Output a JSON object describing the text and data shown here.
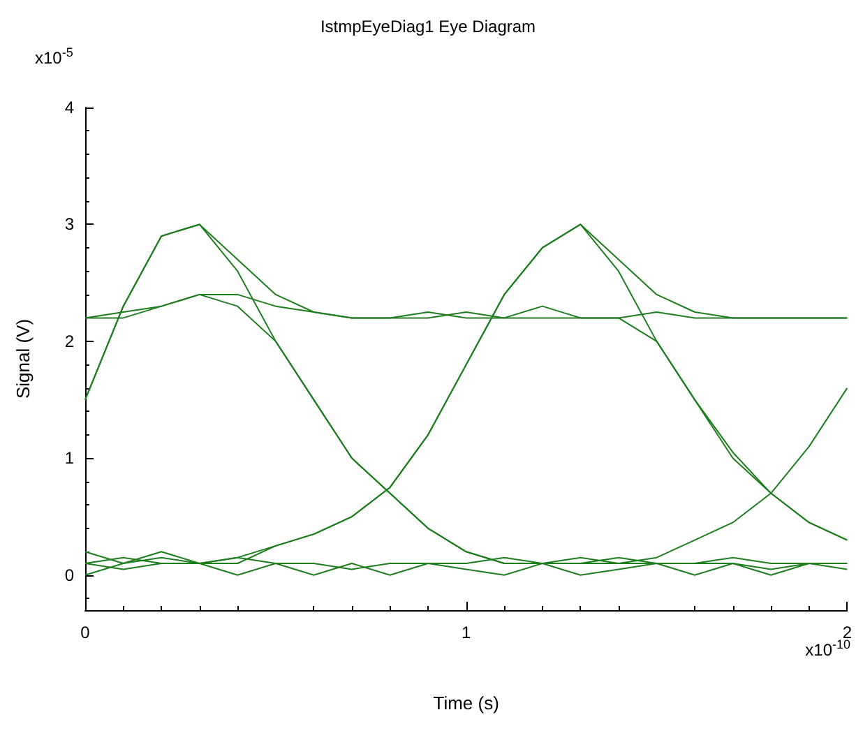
{
  "chart_data": {
    "type": "line",
    "title": "IstmpEyeDiag1 Eye Diagram",
    "xlabel": "Time (s)",
    "ylabel": "Signal (V)",
    "annotations": [
      "x10$^{-5}$",
      "x10$^{-10}$"
    ],
    "x": [
      0,
      0.1,
      0.2,
      0.3,
      0.4,
      0.5,
      0.6,
      0.7,
      0.8,
      0.9,
      1.0,
      1.1,
      1.2,
      1.3,
      1.4,
      1.5,
      1.6,
      1.7,
      1.8,
      1.9,
      2.0
    ],
    "series": [
      {
        "color": "#1e7d1e",
        "values": [
          1.5,
          2.3,
          2.9,
          3.0,
          2.7,
          2.4,
          2.25,
          2.2,
          2.2,
          2.25,
          2.2,
          2.2,
          2.3,
          2.2,
          2.2,
          2.25,
          2.2,
          2.2,
          2.2,
          2.2,
          2.2
        ]
      },
      {
        "color": "#1e7d1e",
        "values": [
          1.5,
          2.3,
          2.9,
          3.0,
          2.6,
          2.0,
          1.5,
          1.0,
          0.7,
          0.4,
          0.2,
          0.1,
          0.1,
          0.1,
          0.15,
          0.1,
          0.1,
          0.1,
          0.05,
          0.1,
          0.1
        ]
      },
      {
        "color": "#1e7d1e",
        "values": [
          0.1,
          0.15,
          0.1,
          0.1,
          0.1,
          0.25,
          0.35,
          0.5,
          0.75,
          1.2,
          1.8,
          2.4,
          2.8,
          3.0,
          2.7,
          2.4,
          2.25,
          2.2,
          2.2,
          2.2,
          2.2
        ]
      },
      {
        "color": "#1e7d1e",
        "values": [
          0.2,
          0.1,
          0.15,
          0.1,
          0.15,
          0.25,
          0.35,
          0.5,
          0.75,
          1.2,
          1.8,
          2.4,
          2.8,
          3.0,
          2.6,
          2.0,
          1.5,
          1.0,
          0.7,
          0.45,
          0.3
        ]
      },
      {
        "color": "#1e7d1e",
        "values": [
          2.2,
          2.25,
          2.3,
          2.4,
          2.4,
          2.3,
          2.25,
          2.2,
          2.2,
          2.2,
          2.25,
          2.2,
          2.2,
          2.2,
          2.2,
          2.0,
          1.5,
          1.05,
          0.7,
          0.45,
          0.3
        ]
      },
      {
        "color": "#1e7d1e",
        "values": [
          0.1,
          0.05,
          0.1,
          0.1,
          0.15,
          0.1,
          0.1,
          0.05,
          0.1,
          0.1,
          0.1,
          0.15,
          0.1,
          0.1,
          0.1,
          0.15,
          0.3,
          0.45,
          0.7,
          1.1,
          1.6
        ]
      },
      {
        "color": "#1e7d1e",
        "values": [
          0.0,
          0.1,
          0.2,
          0.1,
          0.0,
          0.1,
          0.0,
          0.1,
          0.0,
          0.1,
          0.05,
          0.0,
          0.1,
          0.0,
          0.05,
          0.1,
          0.0,
          0.1,
          0.0,
          0.1,
          0.05
        ]
      },
      {
        "color": "#1e7d1e",
        "values": [
          2.2,
          2.2,
          2.3,
          2.4,
          2.3,
          2.0,
          1.5,
          1.0,
          0.7,
          0.4,
          0.2,
          0.1,
          0.1,
          0.15,
          0.1,
          0.1,
          0.1,
          0.15,
          0.1,
          0.1,
          0.1
        ]
      }
    ],
    "xlim": [
      0,
      2
    ],
    "xticks": [
      0,
      1,
      2
    ],
    "ylim": [
      -0.3,
      4
    ],
    "yticks": [
      0,
      1,
      2,
      3,
      4
    ],
    "grid": false,
    "marker": "none",
    "line_style": "solid"
  }
}
